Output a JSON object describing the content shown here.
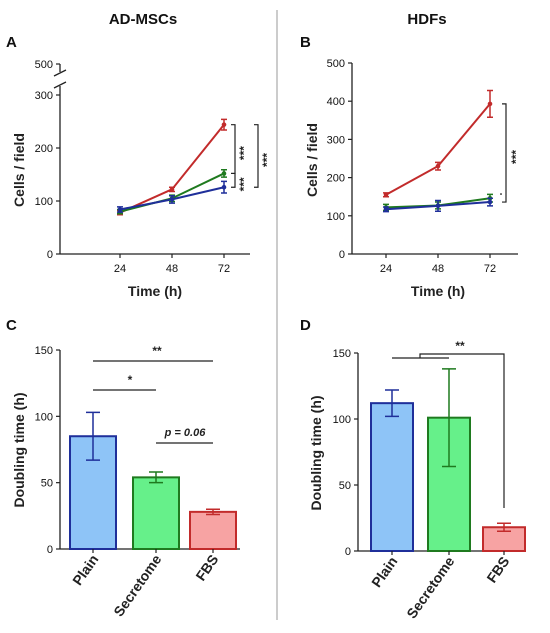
{
  "column_titles": [
    "AD-MSCs",
    "HDFs"
  ],
  "colors": {
    "plain_line": "#1f2f9a",
    "secretome_line": "#1f7a1f",
    "fbs_line": "#c22b2b",
    "plain_fill": "#8ec4f7",
    "secretome_fill": "#66f08a",
    "fbs_fill": "#f7a3a3",
    "divider": "#999999"
  },
  "chart_data": [
    {
      "panel": "A",
      "type": "line",
      "xlabel": "Time (h)",
      "ylabel": "Cells / field",
      "x": [
        24,
        48,
        72
      ],
      "ylim": [
        0,
        500
      ],
      "axis_break": [
        300,
        500
      ],
      "yticks": [
        0,
        100,
        200,
        300,
        500
      ],
      "series": [
        {
          "color_key": "fbs_line",
          "values": [
            78,
            122,
            244
          ],
          "errors": [
            4,
            4,
            10
          ]
        },
        {
          "color_key": "secretome_line",
          "values": [
            80,
            105,
            152
          ],
          "errors": [
            4,
            6,
            7
          ]
        },
        {
          "color_key": "plain_line",
          "values": [
            84,
            103,
            126
          ],
          "errors": [
            5,
            7,
            11
          ]
        }
      ],
      "annotations": [
        "***",
        "***",
        "***"
      ]
    },
    {
      "panel": "B",
      "type": "line",
      "xlabel": "Time (h)",
      "ylabel": "Cells / field",
      "x": [
        24,
        48,
        72
      ],
      "ylim": [
        0,
        500
      ],
      "yticks": [
        0,
        100,
        200,
        300,
        400,
        500
      ],
      "series": [
        {
          "color_key": "fbs_line",
          "values": [
            155,
            230,
            393
          ],
          "errors": [
            5,
            10,
            35
          ]
        },
        {
          "color_key": "secretome_line",
          "values": [
            122,
            127,
            146
          ],
          "errors": [
            8,
            9,
            10
          ]
        },
        {
          "color_key": "plain_line",
          "values": [
            117,
            126,
            136
          ],
          "errors": [
            6,
            14,
            10
          ]
        }
      ],
      "annotations": [
        "***"
      ]
    },
    {
      "panel": "C",
      "type": "bar",
      "xlabel": "",
      "ylabel": "Doubling time (h)",
      "categories": [
        "Plain",
        "Secretome",
        "FBS"
      ],
      "values": [
        85,
        54,
        28
      ],
      "errors": [
        18,
        4,
        2
      ],
      "ylim": [
        0,
        150
      ],
      "yticks": [
        0,
        50,
        100,
        150
      ],
      "annotations": [
        "**",
        "*",
        "p = 0.06"
      ]
    },
    {
      "panel": "D",
      "type": "bar",
      "xlabel": "",
      "ylabel": "Doubling time (h)",
      "categories": [
        "Plain",
        "Secretome",
        "FBS"
      ],
      "values": [
        112,
        101,
        18
      ],
      "errors": [
        10,
        37,
        3
      ],
      "ylim": [
        0,
        150
      ],
      "yticks": [
        0,
        50,
        100,
        150
      ],
      "annotations": [
        "**"
      ]
    }
  ]
}
